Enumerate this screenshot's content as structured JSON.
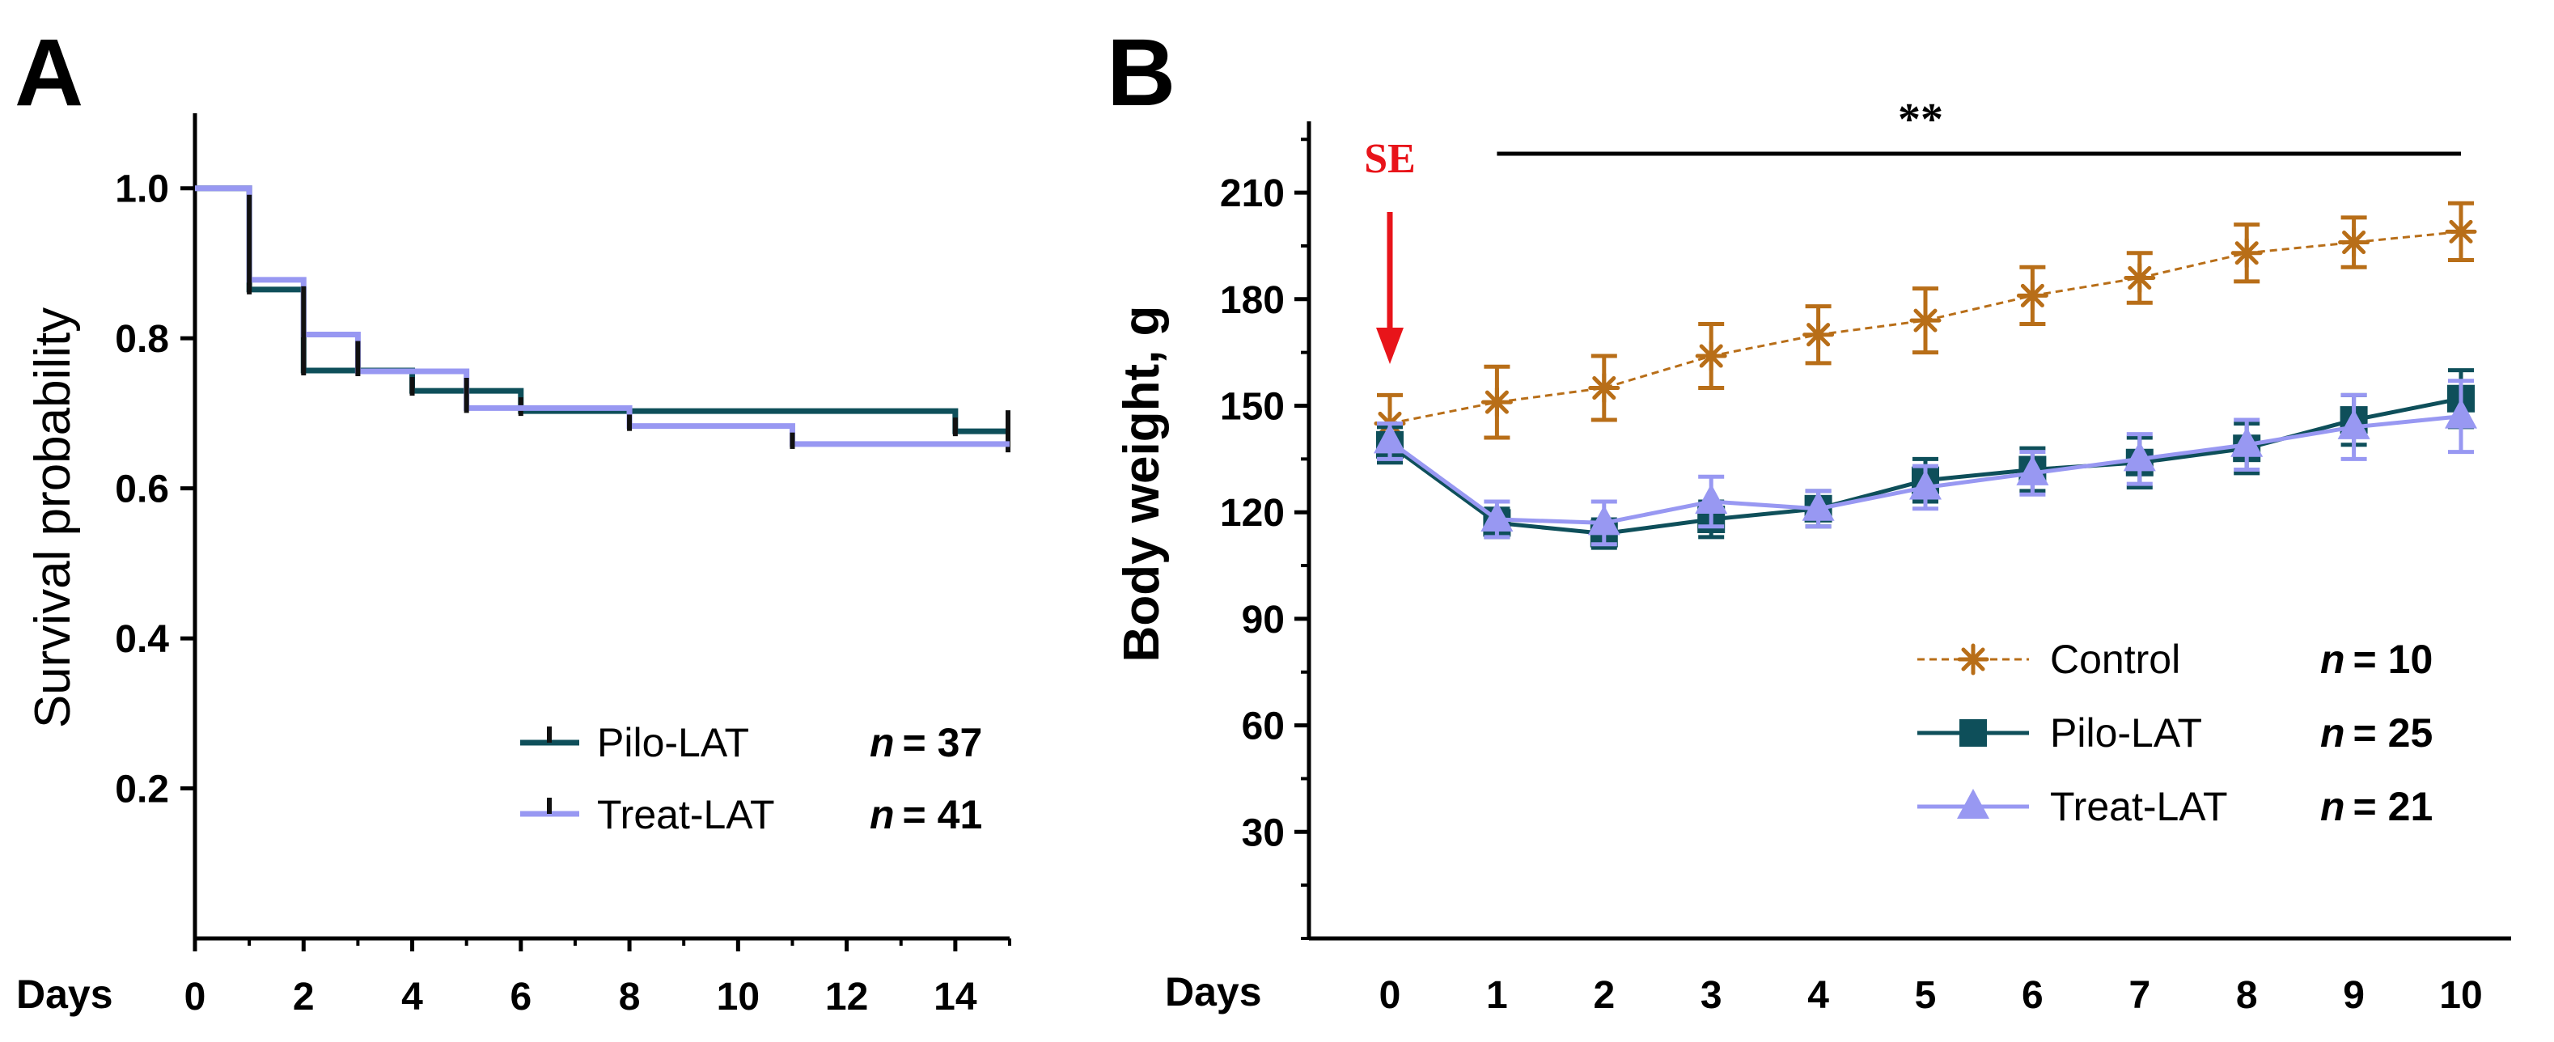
{
  "colors": {
    "control": "#b86e18",
    "pilo": "#0e4f5a",
    "treat": "#9898f2",
    "se_arrow": "#e8141a",
    "axis": "#000000"
  },
  "chart_data": [
    {
      "panel": "A",
      "type": "line",
      "subtype": "kaplan-meier",
      "xlabel": "Days",
      "ylabel": "Survival probability",
      "xlim": [
        0,
        15
      ],
      "ylim": [
        0,
        1.1
      ],
      "x_ticks": [
        0,
        2,
        4,
        6,
        8,
        10,
        12,
        14
      ],
      "y_ticks": [
        0.2,
        0.4,
        0.6,
        0.8,
        1.0
      ],
      "y_tick_labels": [
        "0.2",
        "0.4",
        "0.6",
        "0.8",
        "1.0"
      ],
      "series": [
        {
          "name": "Pilo-LAT",
          "n_label": "n = 37",
          "n_prefix": "n",
          "n_value": "= 37",
          "color_key": "pilo",
          "steps": [
            [
              0,
              1.0
            ],
            [
              1,
              0.865
            ],
            [
              2,
              0.757
            ],
            [
              4,
              0.73
            ],
            [
              6,
              0.703
            ],
            [
              14,
              0.676
            ],
            [
              15,
              0.676
            ]
          ],
          "censor_x": [
            15
          ]
        },
        {
          "name": "Treat-LAT",
          "n_label": "n = 41",
          "n_prefix": "n",
          "n_value": "= 41",
          "color_key": "treat",
          "steps": [
            [
              0,
              1.0
            ],
            [
              1,
              0.878
            ],
            [
              2,
              0.805
            ],
            [
              3,
              0.756
            ],
            [
              5,
              0.707
            ],
            [
              8,
              0.683
            ],
            [
              11,
              0.659
            ],
            [
              15,
              0.659
            ]
          ],
          "censor_x": []
        }
      ]
    },
    {
      "panel": "B",
      "type": "line",
      "xlabel": "Days",
      "ylabel": "Body weight, g",
      "xlim": [
        0,
        10
      ],
      "ylim": [
        0,
        235
      ],
      "x_ticks": [
        0,
        1,
        2,
        3,
        4,
        5,
        6,
        7,
        8,
        9,
        10
      ],
      "y_ticks": [
        30,
        60,
        90,
        120,
        150,
        180,
        210
      ],
      "annotations": {
        "se_label": "SE",
        "significance": "**",
        "significance_range": [
          1,
          10
        ]
      },
      "series": [
        {
          "name": "Control",
          "n_prefix": "n",
          "n_value": "= 10",
          "color_key": "control",
          "marker": "asterisk",
          "dashed": true,
          "x": [
            0,
            1,
            2,
            3,
            4,
            5,
            6,
            7,
            8,
            9,
            10
          ],
          "values": [
            145,
            151,
            155,
            164,
            170,
            174,
            181,
            186,
            193,
            196,
            199
          ],
          "errors": [
            8,
            10,
            9,
            9,
            8,
            9,
            8,
            7,
            8,
            7,
            8
          ]
        },
        {
          "name": "Pilo-LAT",
          "n_prefix": "n",
          "n_value": "= 25",
          "color_key": "pilo",
          "marker": "square",
          "dashed": false,
          "x": [
            0,
            1,
            2,
            3,
            4,
            5,
            6,
            7,
            8,
            9,
            10
          ],
          "values": [
            139,
            117,
            114,
            118,
            121,
            129,
            132,
            134,
            138,
            146,
            152
          ],
          "errors": [
            5,
            4,
            4,
            5,
            5,
            6,
            6,
            7,
            7,
            7,
            8
          ]
        },
        {
          "name": "Treat-LAT",
          "n_prefix": "n",
          "n_value": "= 21",
          "color_key": "treat",
          "marker": "triangle",
          "dashed": false,
          "x": [
            0,
            1,
            2,
            3,
            4,
            5,
            6,
            7,
            8,
            9,
            10
          ],
          "values": [
            140,
            118,
            117,
            123,
            121,
            127,
            131,
            135,
            139,
            144,
            147
          ],
          "errors": [
            5,
            5,
            6,
            7,
            5,
            6,
            6,
            7,
            7,
            9,
            10
          ]
        }
      ]
    }
  ],
  "panels": {
    "a_letter": "A",
    "b_letter": "B"
  }
}
